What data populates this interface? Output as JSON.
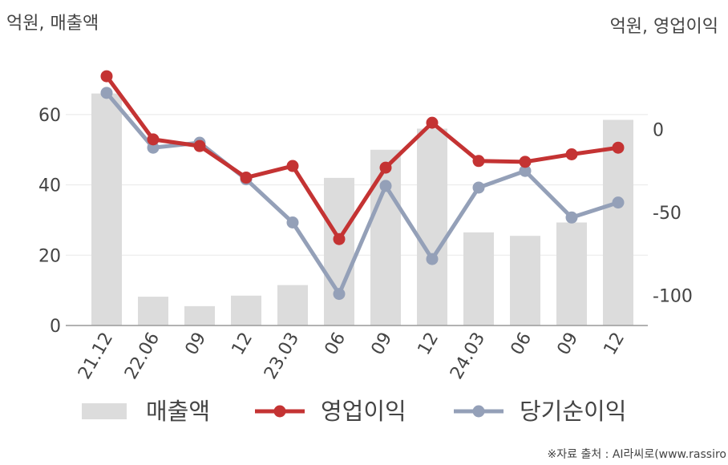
{
  "chart_data": {
    "type": "bar",
    "left_unit_label": "억원, 매출액",
    "right_unit_label": "억원, 영업이익",
    "categories": [
      "21.12",
      "22.06",
      "09",
      "12",
      "23.03",
      "06",
      "09",
      "12",
      "24.03",
      "06",
      "09",
      "12"
    ],
    "left_axis": {
      "ticks": [
        0,
        20,
        40,
        60
      ],
      "ylim": [
        0,
        78
      ]
    },
    "right_axis": {
      "ticks": [
        0,
        -50,
        -100
      ],
      "ylim": [
        -118,
        47
      ]
    },
    "grid": true,
    "legend_position": "bottom",
    "series": [
      {
        "name": "매출액",
        "type": "bar",
        "axis": "left",
        "color": "#dcdcdc",
        "values": [
          66,
          8.2,
          5.5,
          8.5,
          11.5,
          42,
          50,
          56,
          26.5,
          25.5,
          29.3,
          58.5
        ]
      },
      {
        "name": "영업이익",
        "type": "line",
        "axis": "right",
        "color": "#c43333",
        "values": [
          32,
          -6,
          -10,
          -29,
          -22,
          -66,
          -23,
          4,
          -19,
          -19.5,
          -15,
          -11
        ]
      },
      {
        "name": "당기순이익",
        "type": "line",
        "axis": "right",
        "color": "#94a0b8",
        "values": [
          22,
          -11,
          -8,
          -30,
          -56,
          -99,
          -34,
          -78,
          -35,
          -25,
          -53,
          -44
        ]
      }
    ]
  },
  "source_note": "※자료 출처 : AI라씨로(www.rassiro"
}
